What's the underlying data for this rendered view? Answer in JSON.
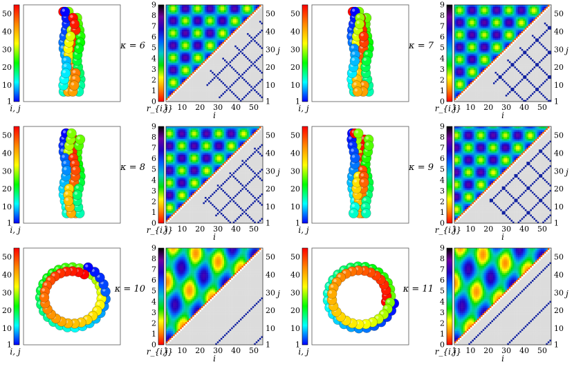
{
  "chart_data": {
    "type": "heatmap",
    "colorbar_struct": {
      "ticks": [
        "10",
        "20",
        "30",
        "40",
        "50"
      ],
      "min_label": "1",
      "label": "i, j",
      "range": [
        1,
        55
      ],
      "colormap": [
        "#0000ff",
        "#00ffff",
        "#00ff00",
        "#ffff00",
        "#ff8800",
        "#ff0000"
      ]
    },
    "colorbar_map": {
      "ticks": [
        "0",
        "1",
        "2",
        "3",
        "4",
        "5",
        "6",
        "7",
        "8",
        "9"
      ],
      "label": "r_{i,j}",
      "range": [
        0,
        9
      ],
      "colormap": [
        "#ff0000",
        "#ff8800",
        "#ffff00",
        "#00e000",
        "#00c8c8",
        "#0060ff",
        "#2000c0",
        "#7000a0",
        "#000000"
      ]
    },
    "map_axes": {
      "x_ticks": [
        "1",
        "10",
        "20",
        "30",
        "40",
        "50"
      ],
      "y_ticks": [
        "1",
        "10",
        "20",
        "30",
        "40",
        "50"
      ],
      "xlabel": "i",
      "ylabel": "j",
      "range": [
        1,
        55
      ]
    },
    "panels": [
      {
        "kappa": "κ = 6",
        "shape": "rod",
        "map_style": "diamond",
        "period": 14
      },
      {
        "kappa": "κ = 7",
        "shape": "rod",
        "map_style": "diamond",
        "period": 14
      },
      {
        "kappa": "κ = 8",
        "shape": "rod",
        "map_style": "diamond",
        "period": 14
      },
      {
        "kappa": "κ = 9",
        "shape": "rod",
        "map_style": "diamond",
        "period": 14
      },
      {
        "kappa": "κ = 10",
        "shape": "ring",
        "map_style": "stripe",
        "period": 22
      },
      {
        "kappa": "κ = 11",
        "shape": "ring",
        "map_style": "stripe",
        "period": 22
      }
    ]
  }
}
